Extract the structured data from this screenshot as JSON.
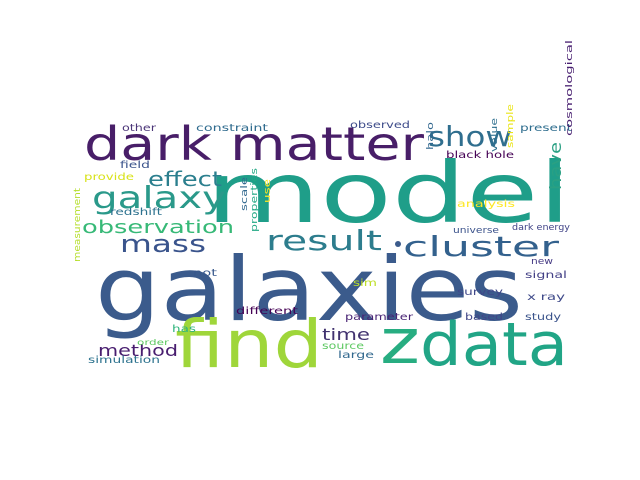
{
  "words": [
    {
      "text": "galaxies",
      "color": "#3b5b8c",
      "weight": 1.0
    },
    {
      "text": "model",
      "color": "#1f9e89",
      "weight": 0.95
    },
    {
      "text": "find",
      "color": "#9fd63a",
      "weight": 0.7
    },
    {
      "text": "data",
      "color": "#21a586",
      "weight": 0.55
    },
    {
      "text": "z",
      "color": "#27ad81",
      "weight": 0.6
    },
    {
      "text": "dark matter",
      "color": "#481e68",
      "weight": 0.55
    },
    {
      "text": "show",
      "color": "#2f6e8e",
      "weight": 0.3
    },
    {
      "text": "galaxy",
      "color": "#2a998a",
      "weight": 0.35
    },
    {
      "text": "result",
      "color": "#2d7d8d",
      "weight": 0.3
    },
    {
      "text": "cluster",
      "color": "#33618d",
      "weight": 0.3
    },
    {
      "text": "mass",
      "color": "#3a548c",
      "weight": 0.25
    },
    {
      "text": "effect",
      "color": "#2b7f8e",
      "weight": 0.2
    },
    {
      "text": "observation",
      "color": "#37b977",
      "weight": 0.18
    },
    {
      "text": "have",
      "color": "#2aa083",
      "weight": 0.18
    },
    {
      "text": "time",
      "color": "#41326f",
      "weight": 0.15
    },
    {
      "text": "method",
      "color": "#481d6f",
      "weight": 0.15
    },
    {
      "text": "other",
      "color": "#4b3578",
      "weight": 0.05
    },
    {
      "text": "constraint",
      "color": "#2f6b8e",
      "weight": 0.05
    },
    {
      "text": "observed",
      "color": "#3e4c8a",
      "weight": 0.05
    },
    {
      "text": "present",
      "color": "#2e6d8e",
      "weight": 0.05
    },
    {
      "text": "cosmological",
      "color": "#481f70",
      "weight": 0.05
    },
    {
      "text": "field",
      "color": "#3a538b",
      "weight": 0.05
    },
    {
      "text": "black hole",
      "color": "#440154",
      "weight": 0.05
    },
    {
      "text": "provide",
      "color": "#d8e219",
      "weight": 0.05
    },
    {
      "text": "redshift",
      "color": "#2c718e",
      "weight": 0.05
    },
    {
      "text": "halo",
      "color": "#31678e",
      "weight": 0.05
    },
    {
      "text": "value",
      "color": "#2e6f8e",
      "weight": 0.05
    },
    {
      "text": "sample",
      "color": "#eae51a",
      "weight": 0.05
    },
    {
      "text": "analysis",
      "color": "#fde725",
      "weight": 0.05
    },
    {
      "text": "use",
      "color": "#fde725",
      "weight": 0.05
    },
    {
      "text": "scale",
      "color": "#31688e",
      "weight": 0.05
    },
    {
      "text": "universe",
      "color": "#3b528b",
      "weight": 0.05
    },
    {
      "text": "dark energy",
      "color": "#404387",
      "weight": 0.05
    },
    {
      "text": "new",
      "color": "#443983",
      "weight": 0.05
    },
    {
      "text": "signal",
      "color": "#423f85",
      "weight": 0.05
    },
    {
      "text": "x ray",
      "color": "#3e4989",
      "weight": 0.05
    },
    {
      "text": "not",
      "color": "#38588c",
      "weight": 0.05
    },
    {
      "text": "properties",
      "color": "#22a884",
      "weight": 0.05
    },
    {
      "text": "sim",
      "color": "#bddf26",
      "weight": 0.05
    },
    {
      "text": "measurement",
      "color": "#b5de2b",
      "weight": 0.05
    },
    {
      "text": "survey",
      "color": "#3f4788",
      "weight": 0.05
    },
    {
      "text": "has",
      "color": "#2fb47c",
      "weight": 0.05
    },
    {
      "text": "different",
      "color": "#440154",
      "weight": 0.05
    },
    {
      "text": "based",
      "color": "#404688",
      "weight": 0.05
    },
    {
      "text": "study",
      "color": "#3a538b",
      "weight": 0.05
    },
    {
      "text": "order",
      "color": "#5ec962",
      "weight": 0.05
    },
    {
      "text": "parameter",
      "color": "#482374",
      "weight": 0.05
    },
    {
      "text": "source",
      "color": "#5ec962",
      "weight": 0.05
    },
    {
      "text": "large",
      "color": "#31688e",
      "weight": 0.05
    },
    {
      "text": "simulation",
      "color": "#2c728e",
      "weight": 0.05
    }
  ]
}
